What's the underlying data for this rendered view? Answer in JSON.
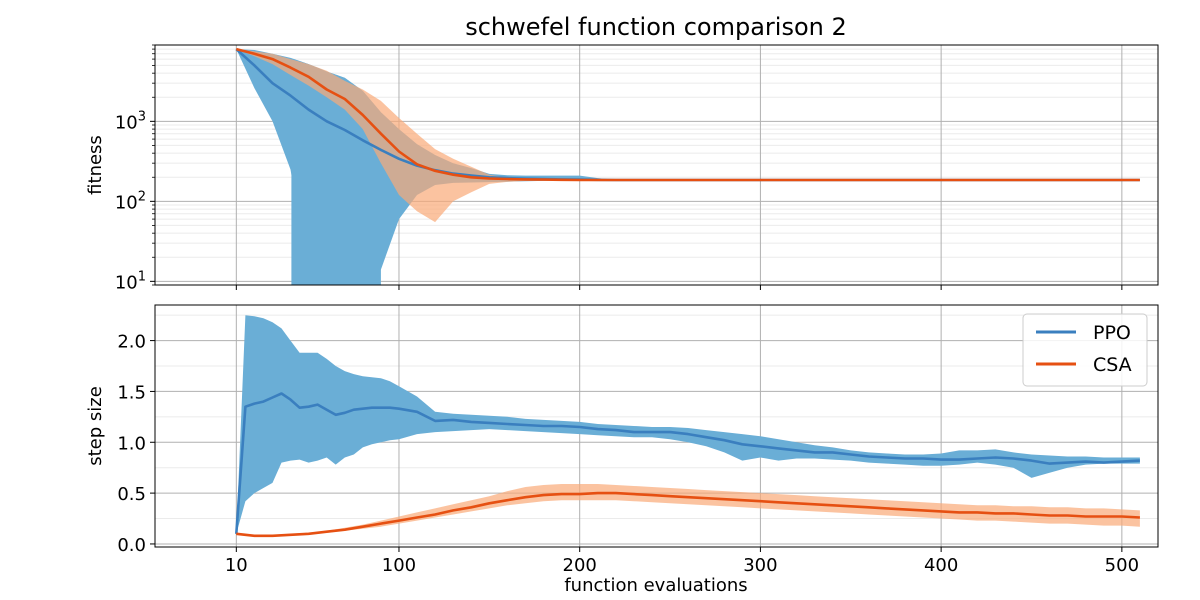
{
  "chart_data": [
    {
      "type": "line",
      "title": "schwefel function comparison 2",
      "xlabel": "",
      "ylabel": "fitness",
      "yscale": "log",
      "xlim": [
        -35,
        520
      ],
      "ylim": [
        9,
        9000
      ],
      "xticks": [
        10,
        100,
        200,
        300,
        400,
        500
      ],
      "yticks": [
        10,
        100,
        1000
      ],
      "ytick_labels": [
        {
          "base": "10",
          "exp": "1"
        },
        {
          "base": "10",
          "exp": "2"
        },
        {
          "base": "10",
          "exp": "3"
        }
      ],
      "grid": true,
      "series": [
        {
          "name": "PPO",
          "color": "#3a7fbf",
          "band_color": "#6aaed6",
          "x": [
            10,
            20,
            30,
            40,
            50,
            60,
            70,
            80,
            90,
            100,
            110,
            120,
            130,
            140,
            150,
            160,
            170,
            180,
            190,
            200,
            210,
            220,
            300,
            400,
            510
          ],
          "y": [
            8000,
            5000,
            3000,
            2100,
            1400,
            1000,
            780,
            580,
            440,
            340,
            280,
            245,
            222,
            210,
            200,
            195,
            192,
            190,
            188,
            187,
            186,
            185,
            185,
            185,
            185
          ],
          "lower": [
            8000,
            2600,
            1000,
            250,
            9,
            9,
            9,
            9,
            9,
            9,
            9,
            9,
            9,
            9,
            9,
            9,
            9,
            9,
            9,
            9,
            9,
            9,
            9,
            9,
            9
          ],
          "upper": [
            8000,
            7800,
            7000,
            6200,
            5200,
            4200,
            3500,
            2400,
            1300,
            800,
            520,
            380,
            300,
            260,
            220,
            212,
            210,
            210,
            210,
            210,
            195,
            186,
            186,
            186,
            186
          ],
          "lower_draw": [
            8000,
            2600,
            1000,
            250,
            12,
            12,
            12,
            12,
            14,
            60,
            120,
            160,
            170,
            172,
            174,
            176,
            178,
            180,
            182,
            183,
            184,
            185,
            185,
            185,
            185
          ],
          "band_break": {
            "x0": 40.5,
            "x1": 90,
            "bottom": 9
          }
        },
        {
          "name": "CSA",
          "color": "#e65012",
          "band_color": "#f9aa78",
          "x": [
            10,
            20,
            30,
            40,
            50,
            60,
            70,
            80,
            90,
            100,
            110,
            120,
            130,
            140,
            150,
            160,
            170,
            180,
            190,
            200,
            210,
            220,
            300,
            400,
            510
          ],
          "y": [
            8000,
            7000,
            6000,
            4700,
            3600,
            2500,
            1900,
            1200,
            700,
            420,
            290,
            240,
            215,
            200,
            193,
            190,
            188,
            187,
            186,
            185,
            185,
            185,
            185,
            185,
            185
          ],
          "lower": [
            8000,
            6500,
            5200,
            3800,
            2800,
            2000,
            1400,
            800,
            300,
            120,
            75,
            55,
            100,
            130,
            165,
            175,
            180,
            182,
            183,
            184,
            184,
            184,
            184,
            184,
            184
          ],
          "upper": [
            8000,
            7500,
            7000,
            6000,
            5200,
            4300,
            3200,
            2500,
            1800,
            1100,
            700,
            450,
            340,
            270,
            215,
            198,
            192,
            190,
            188,
            187,
            186,
            186,
            186,
            186,
            186
          ]
        }
      ]
    },
    {
      "type": "line",
      "title": "",
      "xlabel": "function evaluations",
      "ylabel": "step size",
      "xlim": [
        -35,
        520
      ],
      "ylim": [
        -0.03,
        2.35
      ],
      "xticks": [
        10,
        100,
        200,
        300,
        400,
        500
      ],
      "yticks": [
        0.0,
        0.5,
        1.0,
        1.5,
        2.0
      ],
      "ytick_labels": [
        "0.0",
        "0.5",
        "1.0",
        "1.5",
        "2.0"
      ],
      "grid": true,
      "legend": "top-right",
      "series": [
        {
          "name": "PPO",
          "color": "#3a7fbf",
          "band_color": "#6aaed6",
          "x": [
            10,
            15,
            20,
            25,
            30,
            35,
            40,
            45,
            50,
            55,
            60,
            65,
            70,
            75,
            80,
            85,
            90,
            95,
            100,
            110,
            120,
            130,
            140,
            150,
            160,
            170,
            180,
            190,
            200,
            210,
            220,
            230,
            240,
            250,
            260,
            270,
            280,
            290,
            300,
            310,
            320,
            330,
            340,
            350,
            360,
            370,
            380,
            390,
            400,
            410,
            420,
            430,
            440,
            450,
            460,
            470,
            480,
            490,
            500,
            510
          ],
          "y": [
            0.1,
            1.35,
            1.38,
            1.4,
            1.44,
            1.48,
            1.42,
            1.34,
            1.35,
            1.37,
            1.32,
            1.27,
            1.29,
            1.32,
            1.33,
            1.34,
            1.34,
            1.34,
            1.33,
            1.3,
            1.21,
            1.22,
            1.2,
            1.19,
            1.18,
            1.17,
            1.16,
            1.16,
            1.15,
            1.13,
            1.12,
            1.1,
            1.1,
            1.1,
            1.08,
            1.05,
            1.02,
            0.98,
            0.96,
            0.94,
            0.92,
            0.9,
            0.9,
            0.88,
            0.86,
            0.85,
            0.84,
            0.84,
            0.83,
            0.83,
            0.84,
            0.85,
            0.84,
            0.82,
            0.79,
            0.8,
            0.81,
            0.8,
            0.81,
            0.82
          ],
          "lower": [
            0.1,
            0.42,
            0.5,
            0.55,
            0.6,
            0.8,
            0.82,
            0.83,
            0.8,
            0.82,
            0.85,
            0.78,
            0.85,
            0.88,
            0.95,
            0.98,
            1.0,
            1.02,
            1.03,
            1.08,
            1.1,
            1.11,
            1.12,
            1.13,
            1.12,
            1.11,
            1.1,
            1.09,
            1.08,
            1.07,
            1.06,
            1.05,
            1.05,
            1.03,
            1.0,
            0.96,
            0.9,
            0.82,
            0.85,
            0.82,
            0.84,
            0.84,
            0.83,
            0.82,
            0.8,
            0.79,
            0.78,
            0.77,
            0.77,
            0.78,
            0.8,
            0.78,
            0.75,
            0.65,
            0.7,
            0.75,
            0.78,
            0.79,
            0.79,
            0.79
          ],
          "upper": [
            0.1,
            2.25,
            2.24,
            2.22,
            2.18,
            2.12,
            2.0,
            1.88,
            1.88,
            1.88,
            1.82,
            1.75,
            1.7,
            1.67,
            1.65,
            1.64,
            1.63,
            1.6,
            1.55,
            1.45,
            1.3,
            1.28,
            1.27,
            1.26,
            1.25,
            1.23,
            1.22,
            1.21,
            1.2,
            1.18,
            1.17,
            1.16,
            1.15,
            1.15,
            1.14,
            1.12,
            1.1,
            1.08,
            1.06,
            1.03,
            1.0,
            0.97,
            0.95,
            0.92,
            0.9,
            0.89,
            0.88,
            0.88,
            0.89,
            0.92,
            0.92,
            0.93,
            0.9,
            0.88,
            0.87,
            0.86,
            0.86,
            0.85,
            0.85,
            0.85
          ]
        },
        {
          "name": "CSA",
          "color": "#e65012",
          "band_color": "#f9aa78",
          "x": [
            10,
            20,
            30,
            40,
            50,
            60,
            70,
            80,
            90,
            100,
            110,
            120,
            130,
            140,
            150,
            160,
            170,
            180,
            190,
            200,
            210,
            220,
            230,
            240,
            250,
            260,
            270,
            280,
            290,
            300,
            310,
            320,
            330,
            340,
            350,
            360,
            370,
            380,
            390,
            400,
            410,
            420,
            430,
            440,
            450,
            460,
            470,
            480,
            490,
            500,
            510
          ],
          "y": [
            0.1,
            0.08,
            0.08,
            0.09,
            0.1,
            0.12,
            0.14,
            0.17,
            0.2,
            0.23,
            0.26,
            0.29,
            0.33,
            0.36,
            0.4,
            0.43,
            0.46,
            0.48,
            0.49,
            0.49,
            0.5,
            0.5,
            0.49,
            0.48,
            0.47,
            0.46,
            0.45,
            0.44,
            0.43,
            0.42,
            0.41,
            0.4,
            0.39,
            0.38,
            0.37,
            0.36,
            0.35,
            0.34,
            0.33,
            0.32,
            0.31,
            0.31,
            0.3,
            0.3,
            0.29,
            0.28,
            0.28,
            0.27,
            0.27,
            0.27,
            0.26
          ],
          "lower": [
            0.1,
            0.08,
            0.07,
            0.08,
            0.09,
            0.11,
            0.13,
            0.15,
            0.17,
            0.2,
            0.23,
            0.26,
            0.29,
            0.32,
            0.35,
            0.38,
            0.4,
            0.42,
            0.43,
            0.43,
            0.43,
            0.43,
            0.42,
            0.41,
            0.4,
            0.39,
            0.38,
            0.37,
            0.36,
            0.35,
            0.34,
            0.33,
            0.32,
            0.31,
            0.3,
            0.29,
            0.28,
            0.27,
            0.26,
            0.25,
            0.24,
            0.23,
            0.23,
            0.22,
            0.21,
            0.2,
            0.2,
            0.19,
            0.18,
            0.18,
            0.17
          ],
          "upper": [
            0.1,
            0.09,
            0.09,
            0.1,
            0.11,
            0.13,
            0.16,
            0.19,
            0.23,
            0.27,
            0.31,
            0.35,
            0.39,
            0.43,
            0.47,
            0.52,
            0.56,
            0.58,
            0.59,
            0.59,
            0.59,
            0.58,
            0.57,
            0.56,
            0.55,
            0.54,
            0.53,
            0.52,
            0.51,
            0.5,
            0.49,
            0.48,
            0.47,
            0.46,
            0.45,
            0.44,
            0.43,
            0.42,
            0.41,
            0.4,
            0.39,
            0.38,
            0.38,
            0.37,
            0.37,
            0.36,
            0.36,
            0.35,
            0.35,
            0.34,
            0.33
          ]
        }
      ]
    }
  ]
}
